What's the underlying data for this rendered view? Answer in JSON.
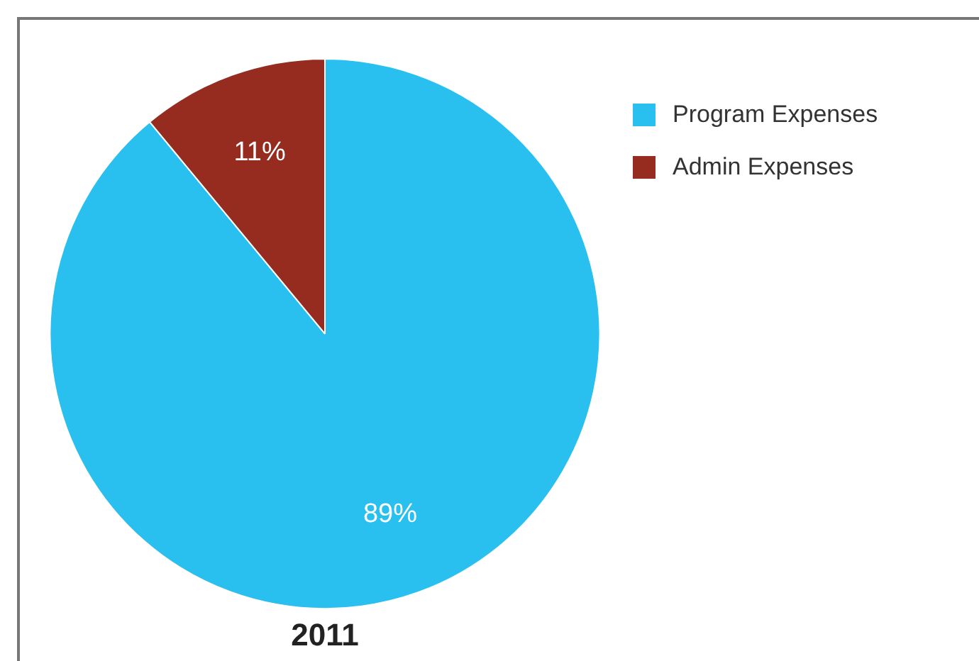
{
  "chart_data": {
    "type": "pie",
    "title": "2011",
    "categories": [
      "Program Expenses",
      "Admin Expenses"
    ],
    "values": [
      89,
      11
    ],
    "colors": [
      "#29bfef",
      "#962b1f"
    ],
    "value_labels": [
      "89%",
      "11%"
    ],
    "legend": "top right"
  }
}
